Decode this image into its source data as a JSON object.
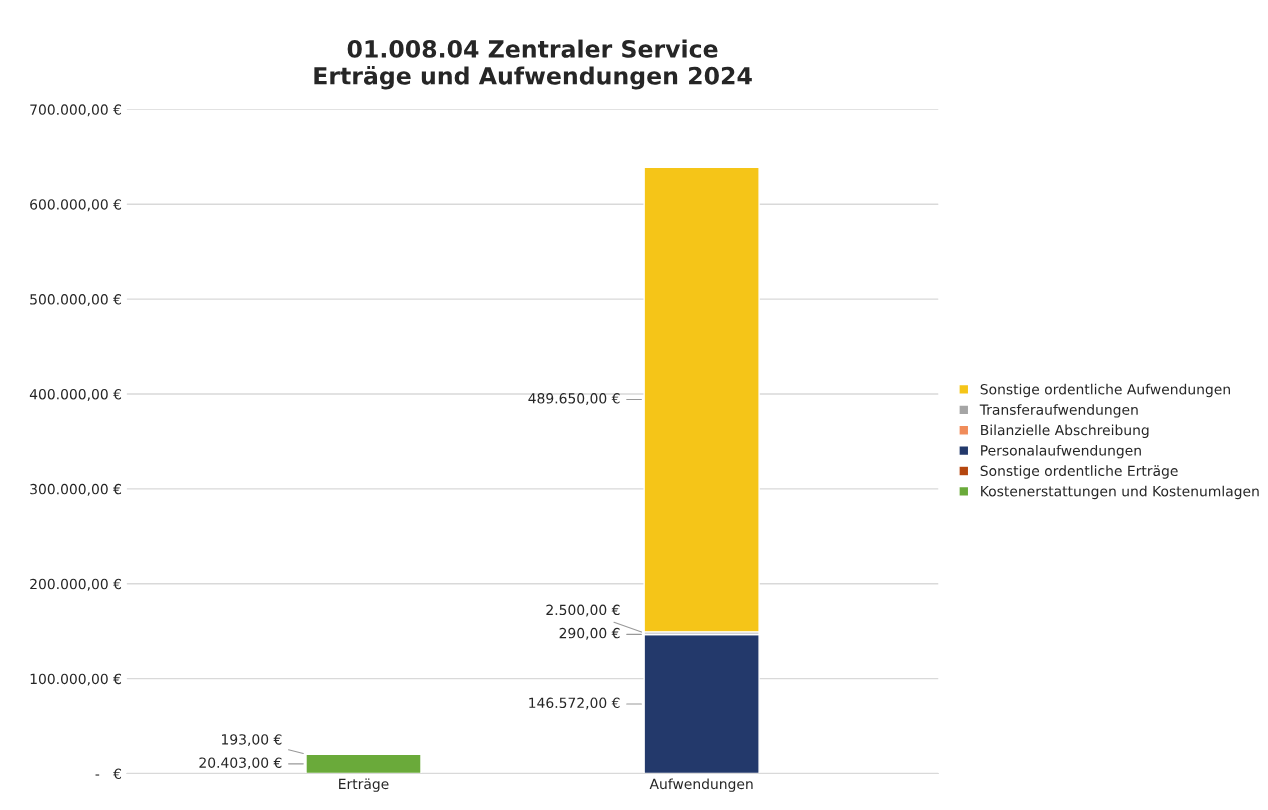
{
  "chart_data": {
    "type": "bar",
    "title": "01.008.04 Zentraler Service\nErträge und Aufwendungen 2024",
    "categories": [
      "Erträge",
      "Aufwendungen"
    ],
    "stacked": true,
    "series": [
      {
        "name": "Kostenerstattungen und Kostenumlagen",
        "color": "#6aaa3a",
        "values": [
          20403,
          0
        ],
        "value_labels": [
          "20.403,00 €",
          null
        ]
      },
      {
        "name": "Sonstige ordentliche Erträge",
        "color": "#b5460f",
        "values": [
          193,
          0
        ],
        "value_labels": [
          "193,00 €",
          null
        ]
      },
      {
        "name": "Personalaufwendungen",
        "color": "#23396b",
        "values": [
          0,
          146572
        ],
        "value_labels": [
          null,
          "146.572,00 €"
        ]
      },
      {
        "name": "Bilanzielle Abschreibung",
        "color": "#f08c5a",
        "values": [
          0,
          290
        ],
        "value_labels": [
          null,
          "290,00 €"
        ]
      },
      {
        "name": "Transferaufwendungen",
        "color": "#a5a5a5",
        "values": [
          0,
          2500
        ],
        "value_labels": [
          null,
          "2.500,00 €"
        ]
      },
      {
        "name": "Sonstige ordentliche Aufwendungen",
        "color": "#f5c518",
        "values": [
          0,
          489650
        ],
        "value_labels": [
          null,
          "489.650,00 €"
        ]
      }
    ],
    "ylim": [
      0,
      700000
    ],
    "yticks": [
      {
        "value": 0,
        "label": "-   €"
      },
      {
        "value": 100000,
        "label": "100.000,00 €"
      },
      {
        "value": 200000,
        "label": "200.000,00 €"
      },
      {
        "value": 300000,
        "label": "300.000,00 €"
      },
      {
        "value": 400000,
        "label": "400.000,00 €"
      },
      {
        "value": 500000,
        "label": "500.000,00 €"
      },
      {
        "value": 600000,
        "label": "600.000,00 €"
      },
      {
        "value": 700000,
        "label": "700.000,00 €"
      }
    ],
    "grid": "y",
    "legend": "right"
  }
}
